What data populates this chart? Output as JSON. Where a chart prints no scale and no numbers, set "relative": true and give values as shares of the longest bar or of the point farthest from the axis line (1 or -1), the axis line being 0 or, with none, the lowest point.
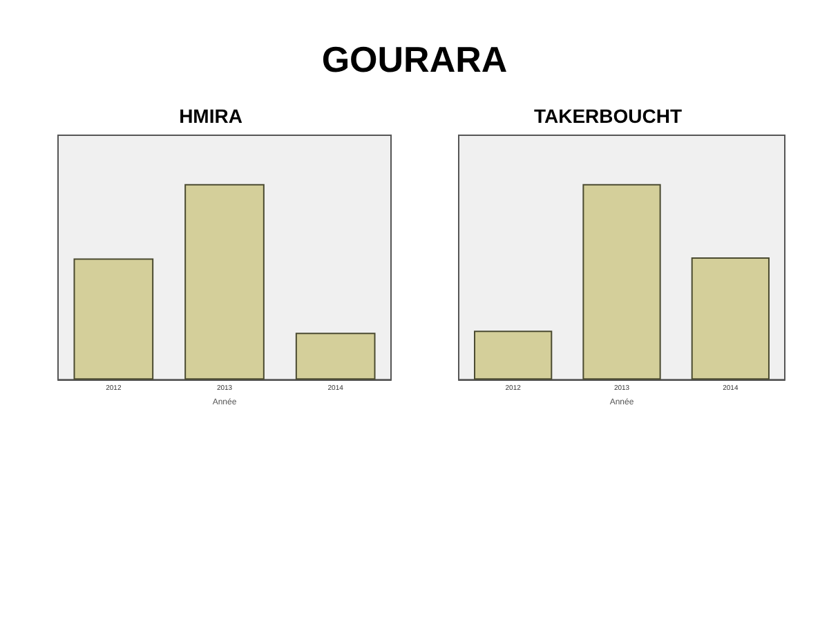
{
  "chart_data": [
    {
      "type": "other",
      "title": "GOURARA"
    },
    {
      "type": "bar",
      "title": "HMIRA",
      "xlabel": "Année",
      "categories": [
        "2012",
        "2013",
        "2014"
      ],
      "values": [
        0.62,
        1,
        0.24
      ],
      "color": "#d4cf9a",
      "relative": true
    },
    {
      "type": "bar",
      "title": "TAKERBOUCHT",
      "xlabel": "Année",
      "categories": [
        "2012",
        "2013",
        "2014"
      ],
      "values": [
        0.25,
        1,
        0.625
      ],
      "color": "#d4cf9a",
      "relative": true
    }
  ]
}
